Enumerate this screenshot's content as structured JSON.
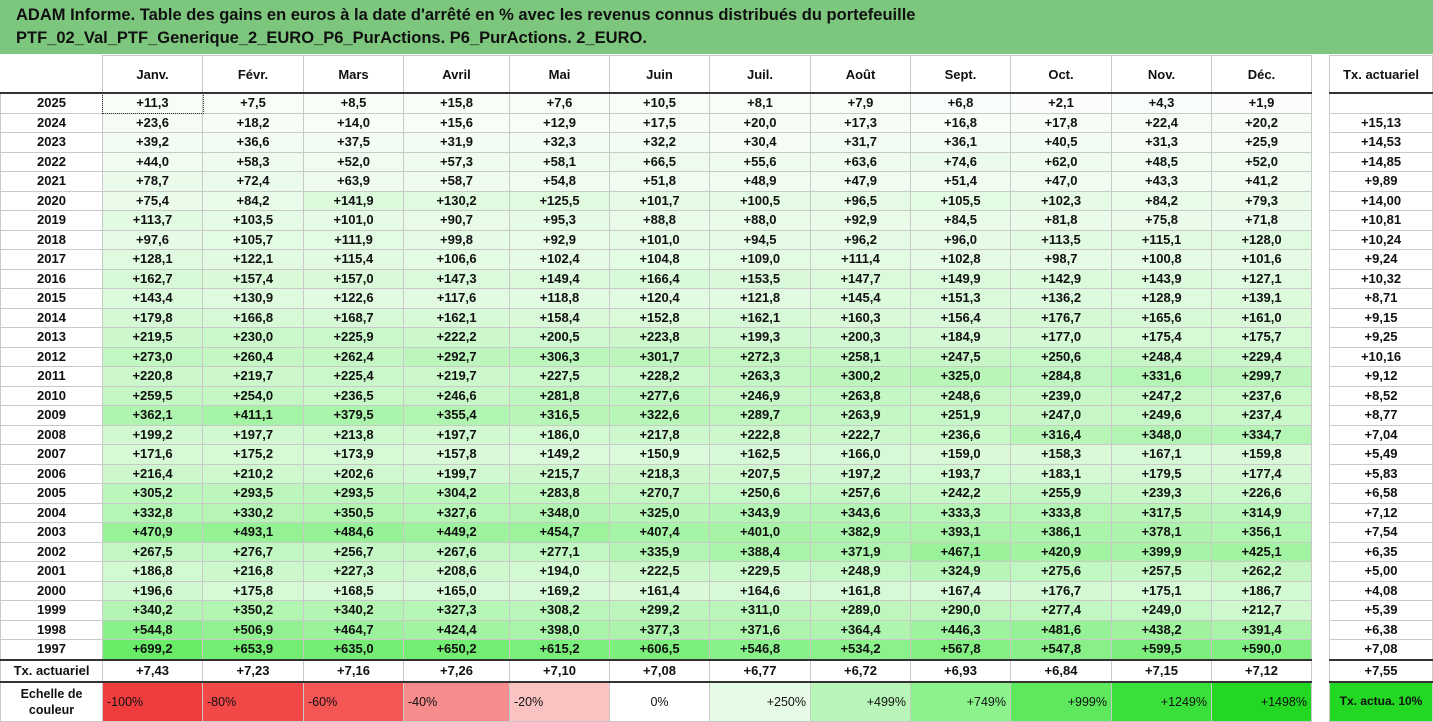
{
  "title": {
    "line1": "ADAM Informe. Table des gains en euros à la date d'arrêté en % avec les revenus connus distribués du portefeuille",
    "line2": "PTF_02_Val_PTF_Generique_2_EURO_P6_PurActions. P6_PurActions. 2_EURO."
  },
  "months": [
    "Janv.",
    "Févr.",
    "Mars",
    "Avril",
    "Mai",
    "Juin",
    "Juil.",
    "Août",
    "Sept.",
    "Oct.",
    "Nov.",
    "Déc."
  ],
  "rate_header": "Tx. actuariel",
  "rows": [
    {
      "year": "2025",
      "values": [
        "+11,3",
        "+7,5",
        "+8,5",
        "+15,8",
        "+7,6",
        "+10,5",
        "+8,1",
        "+7,9",
        "+6,8",
        "+2,1",
        "+4,3",
        "+1,9"
      ],
      "rate": ""
    },
    {
      "year": "2024",
      "values": [
        "+23,6",
        "+18,2",
        "+14,0",
        "+15,6",
        "+12,9",
        "+17,5",
        "+20,0",
        "+17,3",
        "+16,8",
        "+17,8",
        "+22,4",
        "+20,2"
      ],
      "rate": "+15,13"
    },
    {
      "year": "2023",
      "values": [
        "+39,2",
        "+36,6",
        "+37,5",
        "+31,9",
        "+32,3",
        "+32,2",
        "+30,4",
        "+31,7",
        "+36,1",
        "+40,5",
        "+31,3",
        "+25,9"
      ],
      "rate": "+14,53"
    },
    {
      "year": "2022",
      "values": [
        "+44,0",
        "+58,3",
        "+52,0",
        "+57,3",
        "+58,1",
        "+66,5",
        "+55,6",
        "+63,6",
        "+74,6",
        "+62,0",
        "+48,5",
        "+52,0"
      ],
      "rate": "+14,85"
    },
    {
      "year": "2021",
      "values": [
        "+78,7",
        "+72,4",
        "+63,9",
        "+58,7",
        "+54,8",
        "+51,8",
        "+48,9",
        "+47,9",
        "+51,4",
        "+47,0",
        "+43,3",
        "+41,2"
      ],
      "rate": "+9,89"
    },
    {
      "year": "2020",
      "values": [
        "+75,4",
        "+84,2",
        "+141,9",
        "+130,2",
        "+125,5",
        "+101,7",
        "+100,5",
        "+96,5",
        "+105,5",
        "+102,3",
        "+84,2",
        "+79,3"
      ],
      "rate": "+14,00"
    },
    {
      "year": "2019",
      "values": [
        "+113,7",
        "+103,5",
        "+101,0",
        "+90,7",
        "+95,3",
        "+88,8",
        "+88,0",
        "+92,9",
        "+84,5",
        "+81,8",
        "+75,8",
        "+71,8"
      ],
      "rate": "+10,81"
    },
    {
      "year": "2018",
      "values": [
        "+97,6",
        "+105,7",
        "+111,9",
        "+99,8",
        "+92,9",
        "+101,0",
        "+94,5",
        "+96,2",
        "+96,0",
        "+113,5",
        "+115,1",
        "+128,0"
      ],
      "rate": "+10,24"
    },
    {
      "year": "2017",
      "values": [
        "+128,1",
        "+122,1",
        "+115,4",
        "+106,6",
        "+102,4",
        "+104,8",
        "+109,0",
        "+111,4",
        "+102,8",
        "+98,7",
        "+100,8",
        "+101,6"
      ],
      "rate": "+9,24"
    },
    {
      "year": "2016",
      "values": [
        "+162,7",
        "+157,4",
        "+157,0",
        "+147,3",
        "+149,4",
        "+166,4",
        "+153,5",
        "+147,7",
        "+149,9",
        "+142,9",
        "+143,9",
        "+127,1"
      ],
      "rate": "+10,32"
    },
    {
      "year": "2015",
      "values": [
        "+143,4",
        "+130,9",
        "+122,6",
        "+117,6",
        "+118,8",
        "+120,4",
        "+121,8",
        "+145,4",
        "+151,3",
        "+136,2",
        "+128,9",
        "+139,1"
      ],
      "rate": "+8,71"
    },
    {
      "year": "2014",
      "values": [
        "+179,8",
        "+166,8",
        "+168,7",
        "+162,1",
        "+158,4",
        "+152,8",
        "+162,1",
        "+160,3",
        "+156,4",
        "+176,7",
        "+165,6",
        "+161,0"
      ],
      "rate": "+9,15"
    },
    {
      "year": "2013",
      "values": [
        "+219,5",
        "+230,0",
        "+225,9",
        "+222,2",
        "+200,5",
        "+223,8",
        "+199,3",
        "+200,3",
        "+184,9",
        "+177,0",
        "+175,4",
        "+175,7"
      ],
      "rate": "+9,25"
    },
    {
      "year": "2012",
      "values": [
        "+273,0",
        "+260,4",
        "+262,4",
        "+292,7",
        "+306,3",
        "+301,7",
        "+272,3",
        "+258,1",
        "+247,5",
        "+250,6",
        "+248,4",
        "+229,4"
      ],
      "rate": "+10,16"
    },
    {
      "year": "2011",
      "values": [
        "+220,8",
        "+219,7",
        "+225,4",
        "+219,7",
        "+227,5",
        "+228,2",
        "+263,3",
        "+300,2",
        "+325,0",
        "+284,8",
        "+331,6",
        "+299,7"
      ],
      "rate": "+9,12"
    },
    {
      "year": "2010",
      "values": [
        "+259,5",
        "+254,0",
        "+236,5",
        "+246,6",
        "+281,8",
        "+277,6",
        "+246,9",
        "+263,8",
        "+248,6",
        "+239,0",
        "+247,2",
        "+237,6"
      ],
      "rate": "+8,52"
    },
    {
      "year": "2009",
      "values": [
        "+362,1",
        "+411,1",
        "+379,5",
        "+355,4",
        "+316,5",
        "+322,6",
        "+289,7",
        "+263,9",
        "+251,9",
        "+247,0",
        "+249,6",
        "+237,4"
      ],
      "rate": "+8,77"
    },
    {
      "year": "2008",
      "values": [
        "+199,2",
        "+197,7",
        "+213,8",
        "+197,7",
        "+186,0",
        "+217,8",
        "+222,8",
        "+222,7",
        "+236,6",
        "+316,4",
        "+348,0",
        "+334,7"
      ],
      "rate": "+7,04"
    },
    {
      "year": "2007",
      "values": [
        "+171,6",
        "+175,2",
        "+173,9",
        "+157,8",
        "+149,2",
        "+150,9",
        "+162,5",
        "+166,0",
        "+159,0",
        "+158,3",
        "+167,1",
        "+159,8"
      ],
      "rate": "+5,49"
    },
    {
      "year": "2006",
      "values": [
        "+216,4",
        "+210,2",
        "+202,6",
        "+199,7",
        "+215,7",
        "+218,3",
        "+207,5",
        "+197,2",
        "+193,7",
        "+183,1",
        "+179,5",
        "+177,4"
      ],
      "rate": "+5,83"
    },
    {
      "year": "2005",
      "values": [
        "+305,2",
        "+293,5",
        "+293,5",
        "+304,2",
        "+283,8",
        "+270,7",
        "+250,6",
        "+257,6",
        "+242,2",
        "+255,9",
        "+239,3",
        "+226,6"
      ],
      "rate": "+6,58"
    },
    {
      "year": "2004",
      "values": [
        "+332,8",
        "+330,2",
        "+350,5",
        "+327,6",
        "+348,0",
        "+325,0",
        "+343,9",
        "+343,6",
        "+333,3",
        "+333,8",
        "+317,5",
        "+314,9"
      ],
      "rate": "+7,12"
    },
    {
      "year": "2003",
      "values": [
        "+470,9",
        "+493,1",
        "+484,6",
        "+449,2",
        "+454,7",
        "+407,4",
        "+401,0",
        "+382,9",
        "+393,1",
        "+386,1",
        "+378,1",
        "+356,1"
      ],
      "rate": "+7,54"
    },
    {
      "year": "2002",
      "values": [
        "+267,5",
        "+276,7",
        "+256,7",
        "+267,6",
        "+277,1",
        "+335,9",
        "+388,4",
        "+371,9",
        "+467,1",
        "+420,9",
        "+399,9",
        "+425,1"
      ],
      "rate": "+6,35"
    },
    {
      "year": "2001",
      "values": [
        "+186,8",
        "+216,8",
        "+227,3",
        "+208,6",
        "+194,0",
        "+222,5",
        "+229,5",
        "+248,9",
        "+324,9",
        "+275,6",
        "+257,5",
        "+262,2"
      ],
      "rate": "+5,00"
    },
    {
      "year": "2000",
      "values": [
        "+196,6",
        "+175,8",
        "+168,5",
        "+165,0",
        "+169,2",
        "+161,4",
        "+164,6",
        "+161,8",
        "+167,4",
        "+176,7",
        "+175,1",
        "+186,7"
      ],
      "rate": "+4,08"
    },
    {
      "year": "1999",
      "values": [
        "+340,2",
        "+350,2",
        "+340,2",
        "+327,3",
        "+308,2",
        "+299,2",
        "+311,0",
        "+289,0",
        "+290,0",
        "+277,4",
        "+249,0",
        "+212,7"
      ],
      "rate": "+5,39"
    },
    {
      "year": "1998",
      "values": [
        "+544,8",
        "+506,9",
        "+464,7",
        "+424,4",
        "+398,0",
        "+377,3",
        "+371,6",
        "+364,4",
        "+446,3",
        "+481,6",
        "+438,2",
        "+391,4"
      ],
      "rate": "+6,38"
    },
    {
      "year": "1997",
      "values": [
        "+699,2",
        "+653,9",
        "+635,0",
        "+650,2",
        "+615,2",
        "+606,5",
        "+546,8",
        "+534,2",
        "+567,8",
        "+547,8",
        "+599,5",
        "+590,0"
      ],
      "rate": "+7,08"
    }
  ],
  "actuarial_row": {
    "label": "Tx. actuariel",
    "values": [
      "+7,43",
      "+7,23",
      "+7,16",
      "+7,26",
      "+7,10",
      "+7,08",
      "+6,77",
      "+6,72",
      "+6,93",
      "+6,84",
      "+7,15",
      "+7,12"
    ],
    "total": "+7,55"
  },
  "color_scale": {
    "label": "Echelle de couleur",
    "steps": [
      {
        "text": "-100%",
        "color": "#f03c3c"
      },
      {
        "text": "-80%",
        "color": "#f24848"
      },
      {
        "text": "-60%",
        "color": "#f45555"
      },
      {
        "text": "-40%",
        "color": "#f78c8c"
      },
      {
        "text": "-20%",
        "color": "#fbc2c2"
      },
      {
        "text": "0%",
        "color": "#ffffff"
      },
      {
        "text": "+250%",
        "color": "#e6fbe6"
      },
      {
        "text": "+499%",
        "color": "#b8f5b8"
      },
      {
        "text": "+749%",
        "color": "#8cf28c"
      },
      {
        "text": "+999%",
        "color": "#5ee85e"
      },
      {
        "text": "+1249%",
        "color": "#3ae03a"
      },
      {
        "text": "+1498%",
        "color": "#22d822"
      }
    ],
    "side_label": "Tx. actua. 10%",
    "side_color": "#22d822"
  }
}
